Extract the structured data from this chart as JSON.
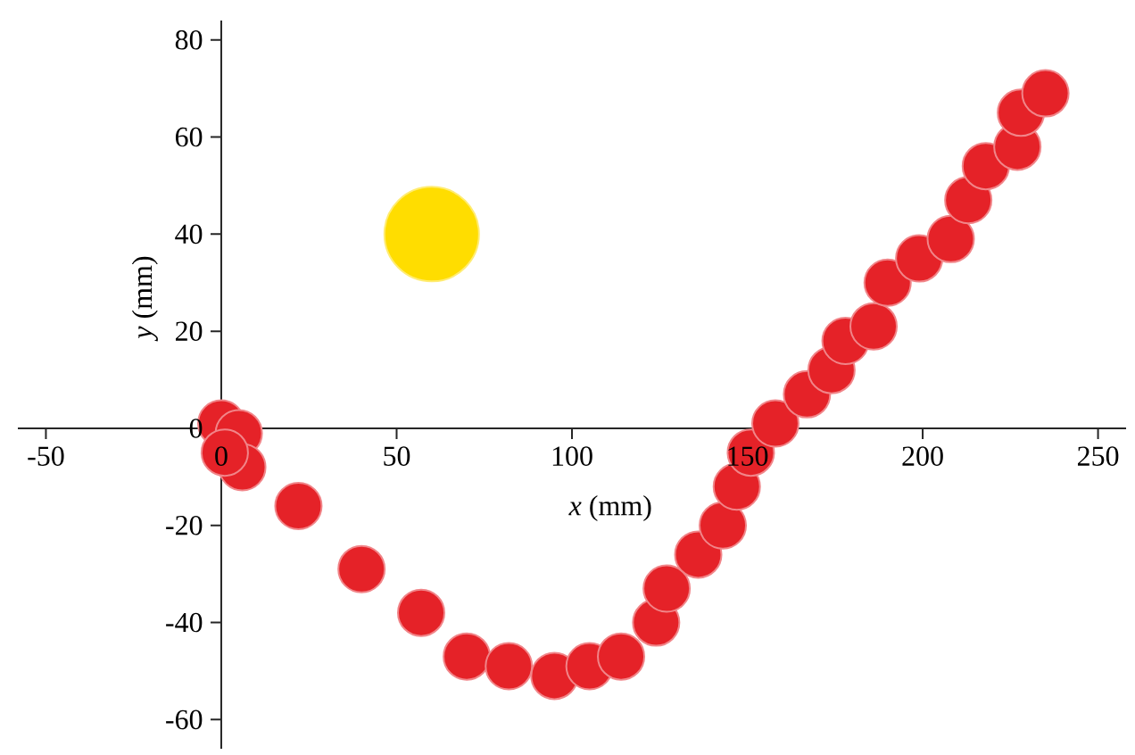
{
  "chart_data": {
    "type": "bubble",
    "xlabel": "*x* (mm)",
    "ylabel": "*y* (mm)",
    "xlim": [
      -58,
      258
    ],
    "ylim": [
      -66,
      84
    ],
    "xticks": [
      -50,
      0,
      50,
      100,
      150,
      200,
      250
    ],
    "yticks": [
      -60,
      -40,
      -20,
      0,
      20,
      40,
      60,
      80
    ],
    "grid": false,
    "series": [
      {
        "color": "#e52228",
        "x": [
          0,
          5,
          6,
          1,
          22,
          40,
          57,
          70,
          82,
          95,
          105,
          114,
          124,
          127,
          136,
          143,
          147,
          151,
          158,
          167,
          174,
          178,
          186,
          190,
          199,
          208,
          213,
          218,
          227,
          228,
          235
        ],
        "values": [
          1,
          -1,
          -8,
          -5,
          -16,
          -29,
          -38,
          -47,
          -49,
          -51,
          -49,
          -47,
          -40,
          -33,
          -26,
          -20,
          -12,
          -5,
          1,
          7,
          12,
          18,
          21,
          30,
          35,
          39,
          47,
          54,
          58,
          65,
          69
        ],
        "sizes": [
          0.25,
          0.25,
          0.25,
          0.25,
          0.25,
          0.25,
          0.25,
          0.25,
          0.25,
          0.25,
          0.25,
          0.25,
          0.25,
          0.25,
          0.25,
          0.25,
          0.25,
          0.25,
          0.25,
          0.25,
          0.25,
          0.25,
          0.25,
          0.25,
          0.25,
          0.25,
          0.25,
          0.25,
          0.25,
          0.25,
          0.25
        ]
      },
      {
        "color": "#ffdd00",
        "x": [
          60
        ],
        "values": [
          40
        ],
        "sizes": [
          1
        ]
      }
    ]
  }
}
